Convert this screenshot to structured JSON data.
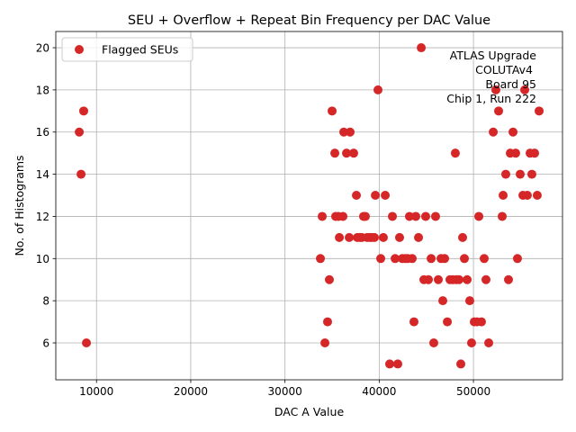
{
  "chart_data": {
    "type": "scatter",
    "title": "SEU + Overflow + Repeat Bin Frequency per DAC Value",
    "xlabel": "DAC A Value",
    "ylabel": "No. of Histograms",
    "xlim": [
      5680,
      59450
    ],
    "ylim": [
      4.25,
      20.77
    ],
    "xticks": [
      10000,
      20000,
      30000,
      40000,
      50000
    ],
    "yticks": [
      6,
      8,
      10,
      12,
      14,
      16,
      18,
      20
    ],
    "grid": true,
    "legend_position": "upper-left",
    "annotation": [
      "ATLAS Upgrade",
      "COLUTAv4",
      "Board 95",
      "Chip 1, Run 222"
    ],
    "series": [
      {
        "name": "Flagged SEUs",
        "color": "#d62728",
        "points": [
          [
            8170,
            16
          ],
          [
            8360,
            14
          ],
          [
            8640,
            17
          ],
          [
            8930,
            6
          ],
          [
            33760,
            10
          ],
          [
            33950,
            12
          ],
          [
            34240,
            6
          ],
          [
            34520,
            7
          ],
          [
            34710,
            9
          ],
          [
            35000,
            17
          ],
          [
            35290,
            15
          ],
          [
            35380,
            12
          ],
          [
            35670,
            12
          ],
          [
            35770,
            11
          ],
          [
            36150,
            12
          ],
          [
            36240,
            16
          ],
          [
            36530,
            15
          ],
          [
            36820,
            11
          ],
          [
            36910,
            16
          ],
          [
            37290,
            15
          ],
          [
            37580,
            13
          ],
          [
            37680,
            11
          ],
          [
            37960,
            11
          ],
          [
            38150,
            11
          ],
          [
            38340,
            12
          ],
          [
            38530,
            12
          ],
          [
            38730,
            11
          ],
          [
            39010,
            11
          ],
          [
            39200,
            11
          ],
          [
            39490,
            11
          ],
          [
            39590,
            13
          ],
          [
            39870,
            18
          ],
          [
            40160,
            10
          ],
          [
            40440,
            11
          ],
          [
            40640,
            13
          ],
          [
            41110,
            5
          ],
          [
            41400,
            12
          ],
          [
            41690,
            10
          ],
          [
            41970,
            5
          ],
          [
            42160,
            11
          ],
          [
            42450,
            10
          ],
          [
            42740,
            10
          ],
          [
            43020,
            10
          ],
          [
            43210,
            12
          ],
          [
            43500,
            10
          ],
          [
            43690,
            7
          ],
          [
            43880,
            12
          ],
          [
            44170,
            11
          ],
          [
            44460,
            20
          ],
          [
            44740,
            9
          ],
          [
            44930,
            12
          ],
          [
            45220,
            9
          ],
          [
            45510,
            10
          ],
          [
            45790,
            6
          ],
          [
            45980,
            12
          ],
          [
            46270,
            9
          ],
          [
            46560,
            10
          ],
          [
            46750,
            8
          ],
          [
            46940,
            10
          ],
          [
            47230,
            7
          ],
          [
            47510,
            9
          ],
          [
            47800,
            9
          ],
          [
            48080,
            15
          ],
          [
            48180,
            9
          ],
          [
            48470,
            9
          ],
          [
            48660,
            5
          ],
          [
            48850,
            11
          ],
          [
            49040,
            10
          ],
          [
            49330,
            9
          ],
          [
            49610,
            8
          ],
          [
            49800,
            6
          ],
          [
            50090,
            7
          ],
          [
            50380,
            7
          ],
          [
            50570,
            12
          ],
          [
            50850,
            7
          ],
          [
            51140,
            10
          ],
          [
            51330,
            9
          ],
          [
            51620,
            6
          ],
          [
            52100,
            16
          ],
          [
            52380,
            18
          ],
          [
            52670,
            17
          ],
          [
            53050,
            12
          ],
          [
            53150,
            13
          ],
          [
            53430,
            14
          ],
          [
            53720,
            9
          ],
          [
            53910,
            15
          ],
          [
            54200,
            16
          ],
          [
            54480,
            15
          ],
          [
            54670,
            10
          ],
          [
            54960,
            14
          ],
          [
            55250,
            13
          ],
          [
            55440,
            18
          ],
          [
            55720,
            13
          ],
          [
            56010,
            15
          ],
          [
            56200,
            14
          ],
          [
            56490,
            15
          ],
          [
            56770,
            13
          ],
          [
            56970,
            17
          ]
        ]
      }
    ]
  }
}
